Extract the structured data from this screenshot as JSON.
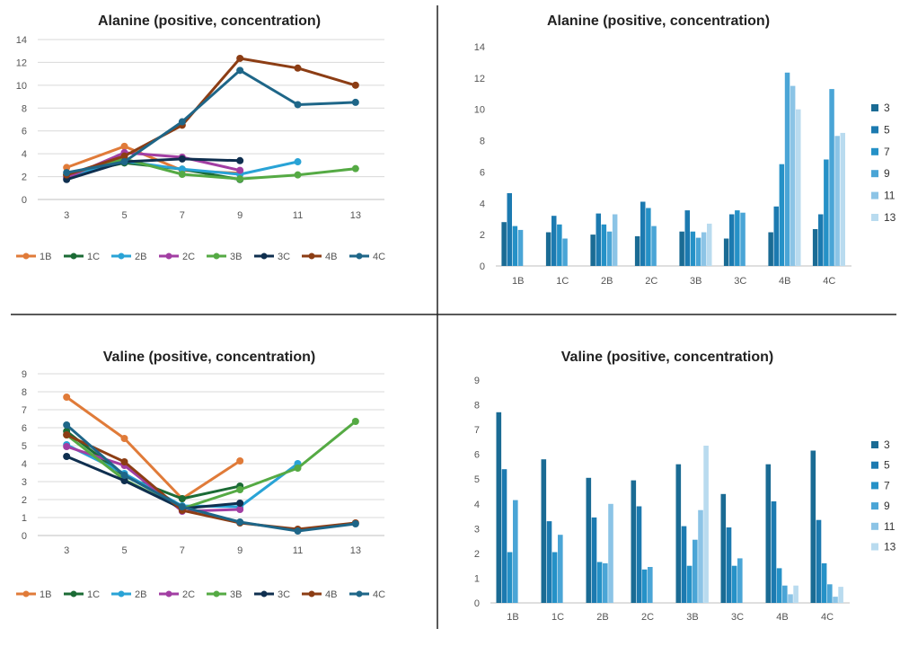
{
  "colors": {
    "divider": "#222222",
    "grid": "#d9d9d9",
    "axis": "#bfbfbf"
  },
  "chart_data": [
    {
      "id": "alanine-line",
      "type": "line",
      "title": "Alanine (positive, concentration)",
      "x": [
        "3",
        "5",
        "7",
        "9",
        "11",
        "13"
      ],
      "ylim": [
        0,
        14
      ],
      "yticks": [
        "0",
        "2",
        "4",
        "6",
        "8",
        "10",
        "12",
        "14"
      ],
      "grid": true,
      "legend_position": "bottom",
      "series": [
        {
          "name": "1B",
          "color": "#e07b39",
          "values": [
            2.8,
            4.65,
            2.55,
            2.3,
            null,
            null
          ]
        },
        {
          "name": "1C",
          "color": "#1b6b35",
          "values": [
            2.15,
            3.2,
            2.65,
            1.75,
            null,
            null
          ]
        },
        {
          "name": "2B",
          "color": "#29a3d6",
          "values": [
            2.0,
            3.35,
            2.65,
            2.2,
            3.3,
            null
          ]
        },
        {
          "name": "2C",
          "color": "#a23ea3",
          "values": [
            1.9,
            4.1,
            3.7,
            2.55,
            null,
            null
          ]
        },
        {
          "name": "3B",
          "color": "#55aa44",
          "values": [
            2.2,
            3.55,
            2.2,
            1.8,
            2.15,
            2.7
          ]
        },
        {
          "name": "3C",
          "color": "#0f2f4f",
          "values": [
            1.75,
            3.3,
            3.55,
            3.4,
            null,
            null
          ]
        },
        {
          "name": "4B",
          "color": "#8c3d14",
          "values": [
            2.15,
            3.8,
            6.5,
            12.35,
            11.5,
            10.0
          ]
        },
        {
          "name": "4C",
          "color": "#1e6688",
          "values": [
            2.35,
            3.3,
            6.8,
            11.3,
            8.3,
            8.5
          ]
        }
      ]
    },
    {
      "id": "alanine-bar",
      "type": "bar",
      "title": "Alanine (positive, concentration)",
      "categories": [
        "1B",
        "1C",
        "2B",
        "2C",
        "3B",
        "3C",
        "4B",
        "4C"
      ],
      "ylim": [
        0,
        14
      ],
      "yticks": [
        "0",
        "2",
        "4",
        "6",
        "8",
        "10",
        "12",
        "14"
      ],
      "grid": false,
      "legend_position": "right",
      "series": [
        {
          "name": "3",
          "color": "#1a6b94",
          "values": [
            2.8,
            2.15,
            2.0,
            1.9,
            2.2,
            1.75,
            2.15,
            2.35
          ]
        },
        {
          "name": "5",
          "color": "#1c7ab0",
          "values": [
            4.65,
            3.2,
            3.35,
            4.1,
            3.55,
            3.3,
            3.8,
            3.3
          ]
        },
        {
          "name": "7",
          "color": "#2591c7",
          "values": [
            2.55,
            2.65,
            2.65,
            3.7,
            2.2,
            3.55,
            6.5,
            6.8
          ]
        },
        {
          "name": "9",
          "color": "#4aa5d6",
          "values": [
            2.3,
            1.75,
            2.2,
            2.55,
            1.8,
            3.4,
            12.35,
            11.3
          ]
        },
        {
          "name": "11",
          "color": "#8cc4e6",
          "values": [
            null,
            null,
            3.3,
            null,
            2.15,
            null,
            11.5,
            8.3
          ]
        },
        {
          "name": "13",
          "color": "#b9dbef",
          "values": [
            null,
            null,
            null,
            null,
            2.7,
            null,
            10.0,
            8.5
          ]
        }
      ]
    },
    {
      "id": "valine-line",
      "type": "line",
      "title": "Valine (positive, concentration)",
      "x": [
        "3",
        "5",
        "7",
        "9",
        "11",
        "13"
      ],
      "ylim": [
        0,
        9
      ],
      "yticks": [
        "0",
        "1",
        "2",
        "3",
        "4",
        "5",
        "6",
        "7",
        "8",
        "9"
      ],
      "grid": true,
      "legend_position": "bottom",
      "series": [
        {
          "name": "1B",
          "color": "#e07b39",
          "values": [
            7.7,
            5.4,
            2.05,
            4.15,
            null,
            null
          ]
        },
        {
          "name": "1C",
          "color": "#1b6b35",
          "values": [
            5.8,
            3.3,
            2.05,
            2.75,
            null,
            null
          ]
        },
        {
          "name": "2B",
          "color": "#29a3d6",
          "values": [
            5.05,
            3.45,
            1.65,
            1.6,
            4.0,
            null
          ]
        },
        {
          "name": "2C",
          "color": "#a23ea3",
          "values": [
            4.95,
            3.9,
            1.35,
            1.45,
            null,
            null
          ]
        },
        {
          "name": "3B",
          "color": "#55aa44",
          "values": [
            5.6,
            3.1,
            1.5,
            2.55,
            3.75,
            6.35
          ]
        },
        {
          "name": "3C",
          "color": "#0f2f4f",
          "values": [
            4.4,
            3.05,
            1.5,
            1.8,
            null,
            null
          ]
        },
        {
          "name": "4B",
          "color": "#8c3d14",
          "values": [
            5.6,
            4.1,
            1.4,
            0.7,
            0.35,
            0.7
          ]
        },
        {
          "name": "4C",
          "color": "#1e6688",
          "values": [
            6.15,
            3.35,
            1.6,
            0.75,
            0.25,
            0.65
          ]
        }
      ]
    },
    {
      "id": "valine-bar",
      "type": "bar",
      "title": "Valine (positive, concentration)",
      "categories": [
        "1B",
        "1C",
        "2B",
        "2C",
        "3B",
        "3C",
        "4B",
        "4C"
      ],
      "ylim": [
        0,
        9
      ],
      "yticks": [
        "0",
        "1",
        "2",
        "3",
        "4",
        "5",
        "6",
        "7",
        "8",
        "9"
      ],
      "grid": false,
      "legend_position": "right",
      "series": [
        {
          "name": "3",
          "color": "#1a6b94",
          "values": [
            7.7,
            5.8,
            5.05,
            4.95,
            5.6,
            4.4,
            5.6,
            6.15
          ]
        },
        {
          "name": "5",
          "color": "#1c7ab0",
          "values": [
            5.4,
            3.3,
            3.45,
            3.9,
            3.1,
            3.05,
            4.1,
            3.35
          ]
        },
        {
          "name": "7",
          "color": "#2591c7",
          "values": [
            2.05,
            2.05,
            1.65,
            1.35,
            1.5,
            1.5,
            1.4,
            1.6
          ]
        },
        {
          "name": "9",
          "color": "#4aa5d6",
          "values": [
            4.15,
            2.75,
            1.6,
            1.45,
            2.55,
            1.8,
            0.7,
            0.75
          ]
        },
        {
          "name": "11",
          "color": "#8cc4e6",
          "values": [
            null,
            null,
            4.0,
            null,
            3.75,
            null,
            0.35,
            0.25
          ]
        },
        {
          "name": "13",
          "color": "#b9dbef",
          "values": [
            null,
            null,
            null,
            null,
            6.35,
            null,
            0.7,
            0.65
          ]
        }
      ]
    }
  ]
}
